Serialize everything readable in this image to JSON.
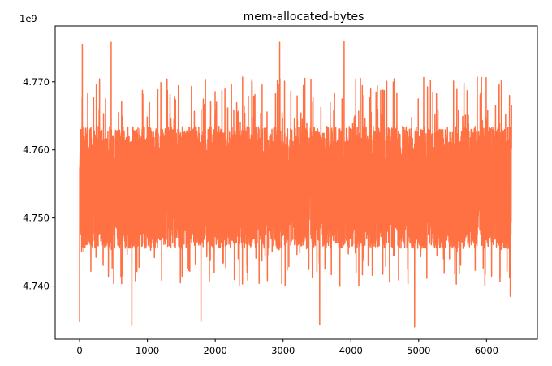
{
  "chart_data": {
    "type": "line",
    "title": "mem-allocated-bytes",
    "xlabel": "",
    "ylabel": "",
    "y_offset_label": "1e9",
    "y_multiplier": 1000000000,
    "xlim": [
      -360,
      6750
    ],
    "ylim": [
      4.7322,
      4.7782
    ],
    "x_ticks": [
      0,
      1000,
      2000,
      3000,
      4000,
      5000,
      6000
    ],
    "x_tick_labels": [
      "0",
      "1000",
      "2000",
      "3000",
      "4000",
      "5000",
      "6000"
    ],
    "y_ticks": [
      4.74,
      4.75,
      4.76,
      4.77
    ],
    "y_tick_labels": [
      "4.740",
      "4.750",
      "4.760",
      "4.770"
    ],
    "grid": false,
    "legend": "none",
    "series": [
      {
        "color": "#ff7043",
        "n_points": 6370,
        "x_min": 0,
        "x_max": 6369,
        "y_center": 4.7553,
        "y_typical_range": [
          4.7405,
          4.7685
        ],
        "extremes": [
          {
            "x": 0,
            "y": 4.7347
          },
          {
            "x": 40,
            "y": 4.7755
          },
          {
            "x": 465,
            "y": 4.7758
          },
          {
            "x": 770,
            "y": 4.7342
          },
          {
            "x": 1790,
            "y": 4.7348
          },
          {
            "x": 2950,
            "y": 4.7758
          },
          {
            "x": 3540,
            "y": 4.7343
          },
          {
            "x": 3900,
            "y": 4.7759
          },
          {
            "x": 4940,
            "y": 4.734
          },
          {
            "x": 6350,
            "y": 4.7385
          }
        ]
      }
    ]
  }
}
